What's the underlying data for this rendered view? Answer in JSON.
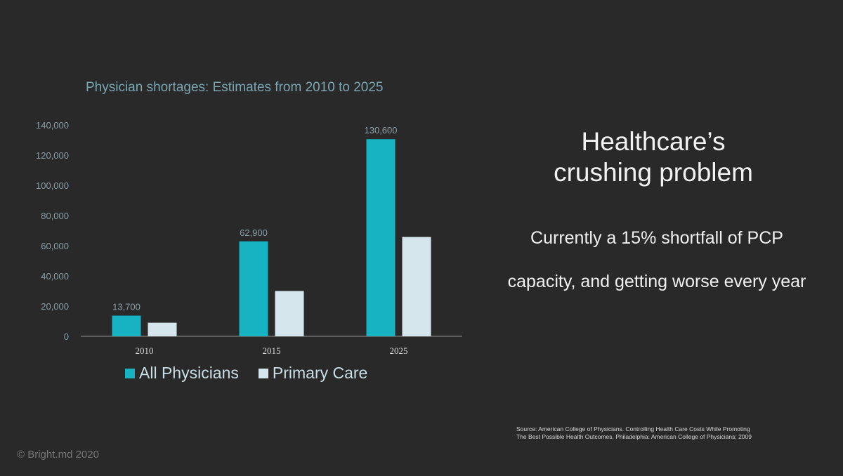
{
  "slide": {
    "headline_line1": "Healthcare’s",
    "headline_line2": "crushing problem",
    "subtext_line1": "Currently a 15% shortfall of PCP",
    "subtext_line2": "capacity, and getting worse every year",
    "source_line1": "Source: American College of Physicians. Controlling Health Care Costs While Promoting",
    "source_line2": "The Best Possible Health Outcomes. Philadelphia: American College of Physicians; 2009",
    "copyright": "© Bright.md 2020",
    "background_color": "#29292a"
  },
  "chart_data": {
    "type": "bar",
    "title": "Physician shortages: Estimates from 2010 to 2025",
    "categories": [
      "2010",
      "2015",
      "2025"
    ],
    "series": [
      {
        "name": "All Physicians",
        "values": [
          13700,
          62900,
          130600
        ],
        "color": "#17b3c3",
        "data_labels": [
          "13,700",
          "62,900",
          "130,600"
        ]
      },
      {
        "name": "Primary Care",
        "values": [
          9000,
          30000,
          65800
        ],
        "color": "#d6e6ed"
      }
    ],
    "ylim": [
      0,
      140000
    ],
    "yticks": [
      0,
      20000,
      40000,
      60000,
      80000,
      100000,
      120000,
      140000
    ],
    "ytick_labels": [
      "0",
      "20,000",
      "40,000",
      "60,000",
      "80,000",
      "100,000",
      "120,000",
      "140,000"
    ],
    "grid": false,
    "legend_position": "bottom-left"
  }
}
